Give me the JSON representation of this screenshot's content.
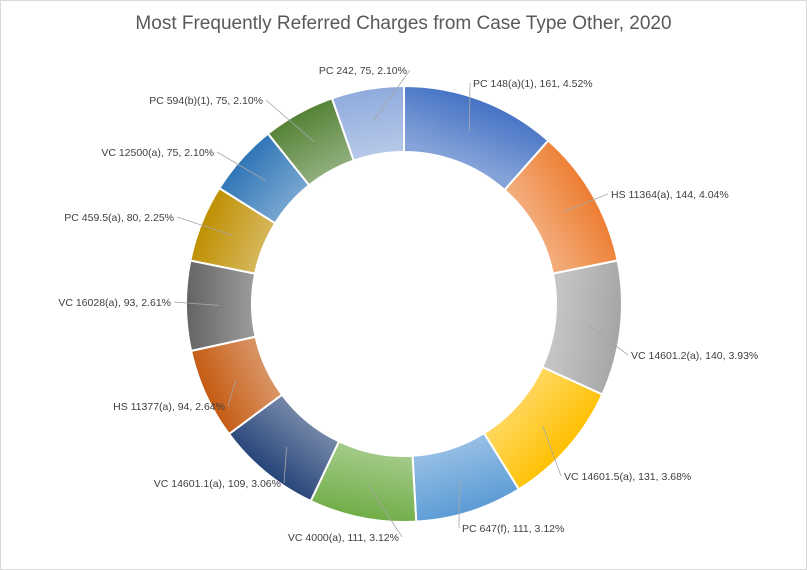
{
  "chart_data": {
    "type": "pie",
    "subtype": "doughnut",
    "title": "Most Frequently Referred Charges from Case Type Other, 2020",
    "legend": "none",
    "slices": [
      {
        "label": "PC  148(a)(1)",
        "value": 161,
        "percent": "4.52%",
        "text": "PC  148(a)(1), 161, 4.52%",
        "color": "#4472C4"
      },
      {
        "label": "HS  11364(a)",
        "value": 144,
        "percent": "4.04%",
        "text": "HS  11364(a), 144, 4.04%",
        "color": "#ED7D31"
      },
      {
        "label": "VC  14601.2(a)",
        "value": 140,
        "percent": "3.93%",
        "text": "VC  14601.2(a), 140, 3.93%",
        "color": "#A5A5A5"
      },
      {
        "label": "VC  14601.5(a)",
        "value": 131,
        "percent": "3.68%",
        "text": "VC  14601.5(a), 131, 3.68%",
        "color": "#FFC000"
      },
      {
        "label": "PC  647(f)",
        "value": 111,
        "percent": "3.12%",
        "text": "PC  647(f), 111, 3.12%",
        "color": "#5B9BD5"
      },
      {
        "label": "VC  4000(a)",
        "value": 111,
        "percent": "3.12%",
        "text": "VC  4000(a), 111, 3.12%",
        "color": "#70AD47"
      },
      {
        "label": "VC  14601.1(a)",
        "value": 109,
        "percent": "3.06%",
        "text": "VC  14601.1(a), 109, 3.06%",
        "color": "#264478"
      },
      {
        "label": "HS  11377(a)",
        "value": 94,
        "percent": "2.64%",
        "text": "HS  11377(a), 94, 2.64%",
        "color": "#C55A11"
      },
      {
        "label": "VC  16028(a)",
        "value": 93,
        "percent": "2.61%",
        "text": "VC  16028(a), 93, 2.61%",
        "color": "#636363"
      },
      {
        "label": "PC  459.5(a)",
        "value": 80,
        "percent": "2.25%",
        "text": "PC  459.5(a), 80, 2.25%",
        "color": "#BF8F00"
      },
      {
        "label": "VC  12500(a)",
        "value": 75,
        "percent": "2.10%",
        "text": "VC  12500(a), 75, 2.10%",
        "color": "#2E75B6"
      },
      {
        "label": "PC  594(b)(1)",
        "value": 75,
        "percent": "2.10%",
        "text": "PC  594(b)(1), 75, 2.10%",
        "color": "#548235"
      },
      {
        "label": "PC  242",
        "value": 75,
        "percent": "2.10%",
        "text": "PC  242, 75, 2.10%",
        "color": "#8FAADC"
      }
    ]
  }
}
